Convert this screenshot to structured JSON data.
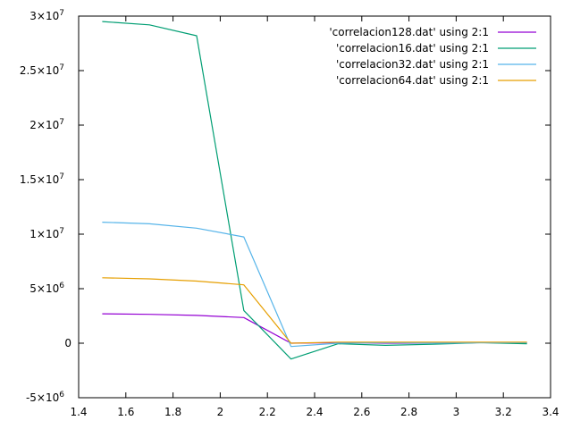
{
  "chart_data": {
    "type": "line",
    "title": "",
    "xlabel": "",
    "ylabel": "",
    "xlim": [
      1.4,
      3.4
    ],
    "ylim": [
      -5000000,
      30000000
    ],
    "grid": false,
    "legend_position": "top-right",
    "x_ticks": [
      {
        "value": 1.4,
        "label": "1.4"
      },
      {
        "value": 1.6,
        "label": "1.6"
      },
      {
        "value": 1.8,
        "label": "1.8"
      },
      {
        "value": 2.0,
        "label": "2"
      },
      {
        "value": 2.2,
        "label": "2.2"
      },
      {
        "value": 2.4,
        "label": "2.4"
      },
      {
        "value": 2.6,
        "label": "2.6"
      },
      {
        "value": 2.8,
        "label": "2.8"
      },
      {
        "value": 3.0,
        "label": "3"
      },
      {
        "value": 3.2,
        "label": "3.2"
      },
      {
        "value": 3.4,
        "label": "3.4"
      }
    ],
    "y_ticks": [
      {
        "value": -5000000,
        "mantissa": "-5×10",
        "exponent": "6"
      },
      {
        "value": 0,
        "mantissa": "0",
        "exponent": ""
      },
      {
        "value": 5000000,
        "mantissa": "5×10",
        "exponent": "6"
      },
      {
        "value": 10000000,
        "mantissa": "1×10",
        "exponent": "7"
      },
      {
        "value": 15000000,
        "mantissa": "1.5×10",
        "exponent": "7"
      },
      {
        "value": 20000000,
        "mantissa": "2×10",
        "exponent": "7"
      },
      {
        "value": 25000000,
        "mantissa": "2.5×10",
        "exponent": "7"
      },
      {
        "value": 30000000,
        "mantissa": "3×10",
        "exponent": "7"
      }
    ],
    "series": [
      {
        "name": "'correlacion128.dat' using 2:1",
        "color": "#9400d3",
        "points": [
          [
            1.5,
            2700000
          ],
          [
            1.7,
            2650000
          ],
          [
            1.9,
            2550000
          ],
          [
            2.1,
            2350000
          ],
          [
            2.3,
            0
          ],
          [
            2.5,
            50000
          ],
          [
            2.7,
            0
          ],
          [
            2.9,
            0
          ],
          [
            3.1,
            50000
          ],
          [
            3.3,
            30000
          ]
        ]
      },
      {
        "name": "'correlacion16.dat' using 2:1",
        "color": "#009e73",
        "points": [
          [
            1.5,
            29500000
          ],
          [
            1.7,
            29200000
          ],
          [
            1.9,
            28200000
          ],
          [
            2.1,
            3000000
          ],
          [
            2.3,
            -1450000
          ],
          [
            2.5,
            -50000
          ],
          [
            2.7,
            -200000
          ],
          [
            2.9,
            -100000
          ],
          [
            3.1,
            50000
          ],
          [
            3.3,
            -50000
          ]
        ]
      },
      {
        "name": "'correlacion32.dat' using 2:1",
        "color": "#56b4e9",
        "points": [
          [
            1.5,
            11100000
          ],
          [
            1.7,
            10950000
          ],
          [
            1.9,
            10550000
          ],
          [
            2.1,
            9750000
          ],
          [
            2.3,
            -300000
          ],
          [
            2.5,
            0
          ],
          [
            2.7,
            50000
          ],
          [
            2.9,
            0
          ],
          [
            3.1,
            50000
          ],
          [
            3.3,
            50000
          ]
        ]
      },
      {
        "name": "'correlacion64.dat' using 2:1",
        "color": "#e69f00",
        "points": [
          [
            1.5,
            6000000
          ],
          [
            1.7,
            5900000
          ],
          [
            1.9,
            5700000
          ],
          [
            2.1,
            5350000
          ],
          [
            2.3,
            0
          ],
          [
            2.5,
            100000
          ],
          [
            2.7,
            100000
          ],
          [
            2.9,
            100000
          ],
          [
            3.1,
            100000
          ],
          [
            3.3,
            100000
          ]
        ]
      }
    ]
  }
}
